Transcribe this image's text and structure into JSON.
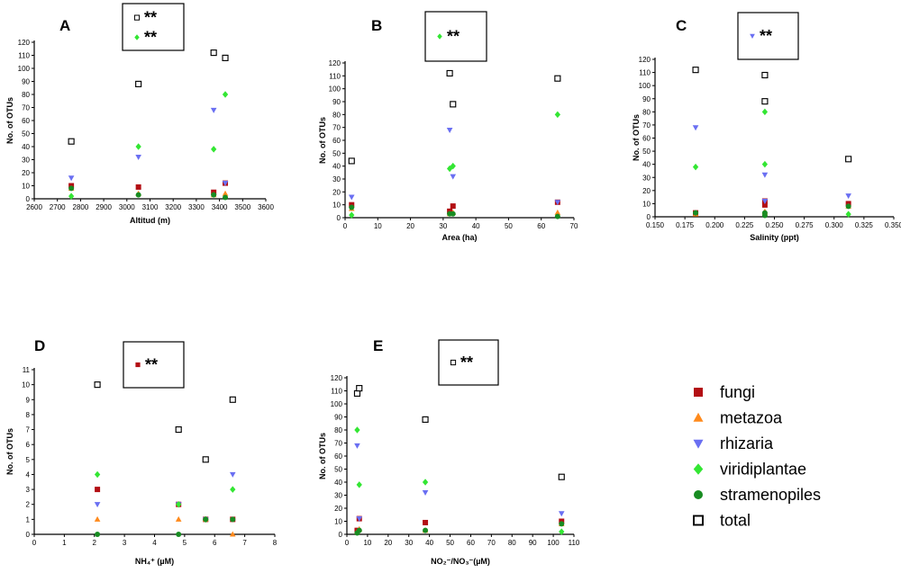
{
  "chart_data": [
    {
      "type": "scatter",
      "panel": "A",
      "xlabel": "Altitud (m)",
      "ylabel": "No. of OTUs",
      "xlim": [
        2600,
        3600
      ],
      "ylim": [
        0,
        120
      ],
      "xticks": [
        2600,
        2700,
        2800,
        2900,
        3000,
        3100,
        3200,
        3300,
        3400,
        3500,
        3600
      ],
      "yticks": [
        0,
        10,
        20,
        30,
        40,
        50,
        60,
        70,
        80,
        90,
        100,
        110,
        120
      ],
      "significance": [
        {
          "series": "total",
          "label": "**"
        },
        {
          "series": "viridiplantae",
          "label": "**"
        }
      ],
      "series": [
        {
          "name": "fungi",
          "points": [
            [
              2760,
              10
            ],
            [
              3050,
              9
            ],
            [
              3375,
              5
            ],
            [
              3425,
              12
            ]
          ]
        },
        {
          "name": "metazoa",
          "points": [
            [
              2760,
              8
            ],
            [
              3050,
              4
            ],
            [
              3375,
              3
            ],
            [
              3425,
              4
            ]
          ]
        },
        {
          "name": "rhizaria",
          "points": [
            [
              2760,
              16
            ],
            [
              3050,
              32
            ],
            [
              3375,
              68
            ],
            [
              3425,
              12
            ]
          ]
        },
        {
          "name": "viridiplantae",
          "points": [
            [
              2760,
              2
            ],
            [
              3050,
              40
            ],
            [
              3375,
              38
            ],
            [
              3425,
              80
            ]
          ]
        },
        {
          "name": "stramenopiles",
          "points": [
            [
              2760,
              8
            ],
            [
              3050,
              3
            ],
            [
              3375,
              3
            ],
            [
              3425,
              1
            ]
          ]
        },
        {
          "name": "total",
          "points": [
            [
              2760,
              44
            ],
            [
              3050,
              88
            ],
            [
              3375,
              112
            ],
            [
              3425,
              108
            ]
          ]
        }
      ]
    },
    {
      "type": "scatter",
      "panel": "B",
      "xlabel": "Area (ha)",
      "ylabel": "No. of OTUs",
      "xlim": [
        0,
        70
      ],
      "ylim": [
        0,
        120
      ],
      "xticks": [
        0,
        10,
        20,
        30,
        40,
        50,
        60,
        70
      ],
      "yticks": [
        0,
        10,
        20,
        30,
        40,
        50,
        60,
        70,
        80,
        90,
        100,
        110,
        120
      ],
      "significance": [
        {
          "series": "viridiplantae",
          "label": "**"
        }
      ],
      "series": [
        {
          "name": "fungi",
          "points": [
            [
              2,
              10
            ],
            [
              32,
              5
            ],
            [
              33,
              9
            ],
            [
              65,
              12
            ]
          ]
        },
        {
          "name": "metazoa",
          "points": [
            [
              2,
              7
            ],
            [
              32,
              3
            ],
            [
              33,
              4
            ],
            [
              65,
              4
            ]
          ]
        },
        {
          "name": "rhizaria",
          "points": [
            [
              2,
              16
            ],
            [
              32,
              68
            ],
            [
              33,
              32
            ],
            [
              65,
              12
            ]
          ]
        },
        {
          "name": "viridiplantae",
          "points": [
            [
              2,
              2
            ],
            [
              32,
              38
            ],
            [
              33,
              40
            ],
            [
              65,
              80
            ]
          ]
        },
        {
          "name": "stramenopiles",
          "points": [
            [
              2,
              8
            ],
            [
              32,
              3
            ],
            [
              33,
              3
            ],
            [
              65,
              1
            ]
          ]
        },
        {
          "name": "total",
          "points": [
            [
              2,
              44
            ],
            [
              32,
              112
            ],
            [
              33,
              88
            ],
            [
              65,
              108
            ]
          ]
        }
      ]
    },
    {
      "type": "scatter",
      "panel": "C",
      "xlabel": "Salinity (ppt)",
      "ylabel": "No. of OTUs",
      "xlim": [
        0.15,
        0.35
      ],
      "ylim": [
        0,
        120
      ],
      "xticks": [
        0.15,
        0.175,
        0.2,
        0.225,
        0.25,
        0.275,
        0.3,
        0.325,
        0.35
      ],
      "xticklabels": [
        "0.150",
        "0.175",
        "0.200",
        "0.225",
        "0.250",
        "0.275",
        "0.300",
        "0.325",
        "0.350"
      ],
      "yticks": [
        0,
        10,
        20,
        30,
        40,
        50,
        60,
        70,
        80,
        90,
        100,
        110,
        120
      ],
      "significance": [
        {
          "series": "rhizaria",
          "label": "**"
        }
      ],
      "series": [
        {
          "name": "fungi",
          "points": [
            [
              0.184,
              3
            ],
            [
              0.242,
              9
            ],
            [
              0.242,
              12
            ],
            [
              0.312,
              10
            ]
          ]
        },
        {
          "name": "metazoa",
          "points": [
            [
              0.184,
              2
            ],
            [
              0.242,
              4
            ],
            [
              0.242,
              3
            ],
            [
              0.312,
              8
            ]
          ]
        },
        {
          "name": "rhizaria",
          "points": [
            [
              0.184,
              68
            ],
            [
              0.242,
              32
            ],
            [
              0.242,
              12
            ],
            [
              0.312,
              16
            ]
          ]
        },
        {
          "name": "viridiplantae",
          "points": [
            [
              0.184,
              38
            ],
            [
              0.242,
              40
            ],
            [
              0.242,
              80
            ],
            [
              0.312,
              2
            ]
          ]
        },
        {
          "name": "stramenopiles",
          "points": [
            [
              0.184,
              3
            ],
            [
              0.242,
              3
            ],
            [
              0.242,
              1
            ],
            [
              0.312,
              8
            ]
          ]
        },
        {
          "name": "total",
          "points": [
            [
              0.184,
              112
            ],
            [
              0.242,
              88
            ],
            [
              0.242,
              108
            ],
            [
              0.312,
              44
            ]
          ]
        }
      ]
    },
    {
      "type": "scatter",
      "panel": "D",
      "xlabel": "NH₄⁺ (µM)",
      "ylabel": "No. of OTUs",
      "xlim": [
        0,
        8
      ],
      "ylim": [
        0,
        11
      ],
      "xticks": [
        0,
        1,
        2,
        3,
        4,
        5,
        6,
        7,
        8
      ],
      "yticks": [
        0,
        1,
        2,
        3,
        4,
        5,
        6,
        7,
        8,
        9,
        10,
        11
      ],
      "significance": [
        {
          "series": "fungi",
          "label": "**"
        }
      ],
      "series": [
        {
          "name": "fungi",
          "points": [
            [
              2.1,
              3
            ],
            [
              4.8,
              2
            ],
            [
              5.7,
              1
            ],
            [
              6.6,
              1
            ]
          ]
        },
        {
          "name": "metazoa",
          "points": [
            [
              2.1,
              1
            ],
            [
              4.8,
              1
            ],
            [
              5.7,
              1
            ],
            [
              6.6,
              0
            ]
          ]
        },
        {
          "name": "rhizaria",
          "points": [
            [
              2.1,
              2
            ],
            [
              4.8,
              2
            ],
            [
              5.7,
              1
            ],
            [
              6.6,
              4
            ]
          ]
        },
        {
          "name": "viridiplantae",
          "points": [
            [
              2.1,
              4
            ],
            [
              4.8,
              2
            ],
            [
              5.7,
              1
            ],
            [
              6.6,
              3
            ]
          ]
        },
        {
          "name": "stramenopiles",
          "points": [
            [
              2.1,
              0
            ],
            [
              4.8,
              0
            ],
            [
              5.7,
              1
            ],
            [
              6.6,
              1
            ]
          ]
        },
        {
          "name": "total",
          "points": [
            [
              2.1,
              10
            ],
            [
              4.8,
              7
            ],
            [
              5.7,
              5
            ],
            [
              6.6,
              9
            ]
          ]
        }
      ]
    },
    {
      "type": "scatter",
      "panel": "E",
      "xlabel": "NO₂⁻/NO₃⁻(µM)",
      "ylabel": "No. of OTUs",
      "xlim": [
        0,
        110
      ],
      "ylim": [
        0,
        120
      ],
      "xticks": [
        0,
        10,
        20,
        30,
        40,
        50,
        60,
        70,
        80,
        90,
        100,
        110
      ],
      "yticks": [
        0,
        10,
        20,
        30,
        40,
        50,
        60,
        70,
        80,
        90,
        100,
        110,
        120
      ],
      "significance": [
        {
          "series": "total",
          "label": "**"
        }
      ],
      "series": [
        {
          "name": "fungi",
          "points": [
            [
              5,
              3
            ],
            [
              6,
              12
            ],
            [
              38,
              9
            ],
            [
              104,
              10
            ]
          ]
        },
        {
          "name": "metazoa",
          "points": [
            [
              5,
              2
            ],
            [
              6,
              4
            ],
            [
              38,
              3
            ],
            [
              104,
              8
            ]
          ]
        },
        {
          "name": "rhizaria",
          "points": [
            [
              5,
              68
            ],
            [
              6,
              12
            ],
            [
              38,
              32
            ],
            [
              104,
              16
            ]
          ]
        },
        {
          "name": "viridiplantae",
          "points": [
            [
              5,
              80
            ],
            [
              6,
              38
            ],
            [
              38,
              40
            ],
            [
              104,
              2
            ]
          ]
        },
        {
          "name": "stramenopiles",
          "points": [
            [
              5,
              1
            ],
            [
              6,
              3
            ],
            [
              38,
              3
            ],
            [
              104,
              8
            ]
          ]
        },
        {
          "name": "total",
          "points": [
            [
              5,
              108
            ],
            [
              6,
              112
            ],
            [
              38,
              88
            ],
            [
              104,
              44
            ]
          ]
        }
      ]
    }
  ],
  "legend": [
    {
      "key": "fungi",
      "label": "fungi",
      "marker": "square-filled",
      "color": "#b30f14"
    },
    {
      "key": "metazoa",
      "label": "metazoa",
      "marker": "triangle-up",
      "color": "#ff8a1c"
    },
    {
      "key": "rhizaria",
      "label": "rhizaria",
      "marker": "triangle-down",
      "color": "#6a6ff2"
    },
    {
      "key": "viridiplantae",
      "label": "viridiplantae",
      "marker": "diamond",
      "color": "#33e633"
    },
    {
      "key": "stramenopiles",
      "label": "stramenopiles",
      "marker": "circle",
      "color": "#188c22"
    },
    {
      "key": "total",
      "label": "total",
      "marker": "square-open",
      "color": "#000000"
    }
  ]
}
